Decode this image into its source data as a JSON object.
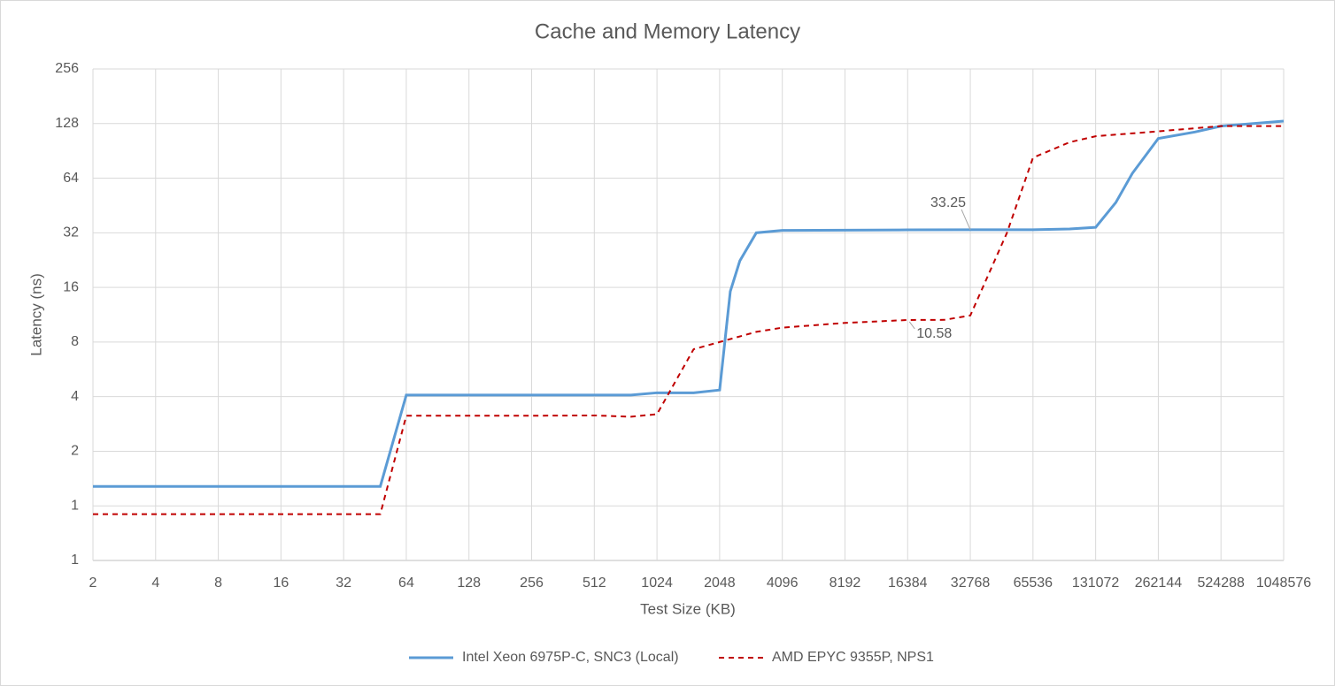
{
  "chart_data": {
    "type": "line",
    "title": "Cache and Memory Latency",
    "x_label": "Test Size (KB)",
    "y_label": "Latency (ns)",
    "xlog": true,
    "ylog": true,
    "log_base": 2,
    "grid": true,
    "legend": "bottom",
    "xlim": [
      2,
      1048576
    ],
    "xticks": [
      2,
      4,
      8,
      16,
      32,
      64,
      128,
      256,
      512,
      1024,
      2048,
      4096,
      8192,
      16384,
      32768,
      65536,
      131072,
      262144,
      524288,
      1048576
    ],
    "ylim": [
      0.5,
      256
    ],
    "yticks": [
      {
        "value": 0.5,
        "label": "1"
      },
      1,
      2,
      4,
      8,
      16,
      32,
      64,
      128,
      256
    ],
    "series": [
      {
        "name": "Intel Xeon 6975P-C, SNC3 (Local)",
        "color": "#5b9bd5",
        "line_style": "solid",
        "x": [
          2,
          4,
          8,
          16,
          32,
          48,
          64,
          96,
          128,
          256,
          512,
          768,
          1024,
          1536,
          2048,
          2304,
          2560,
          3072,
          4096,
          8192,
          16384,
          32768,
          65536,
          98304,
          131072,
          163840,
          196608,
          262144,
          393216,
          524288,
          1048576
        ],
        "values": [
          1.28,
          1.28,
          1.28,
          1.28,
          1.28,
          1.28,
          4.08,
          4.08,
          4.08,
          4.08,
          4.08,
          4.08,
          4.2,
          4.2,
          4.35,
          15.2,
          22.4,
          32,
          33,
          33.1,
          33.2,
          33.25,
          33.25,
          33.6,
          34.3,
          47,
          68,
          106,
          115,
          124,
          132
        ]
      },
      {
        "name": "AMD EPYC 9355P, NPS1",
        "color": "#c00000",
        "line_style": "dashed",
        "x": [
          2,
          4,
          8,
          16,
          32,
          48,
          64,
          96,
          128,
          256,
          512,
          768,
          1024,
          1536,
          2048,
          3072,
          4096,
          8192,
          16384,
          24576,
          32768,
          49152,
          65536,
          98304,
          131072,
          262144,
          524288,
          1048576
        ],
        "values": [
          0.9,
          0.9,
          0.9,
          0.9,
          0.9,
          0.9,
          3.14,
          3.14,
          3.14,
          3.14,
          3.15,
          3.1,
          3.2,
          7.3,
          8.0,
          9.1,
          9.6,
          10.2,
          10.58,
          10.6,
          11.2,
          32,
          83,
          101,
          109,
          116,
          124,
          124
        ]
      }
    ],
    "data_labels": [
      {
        "series": 0,
        "index": 21
      },
      {
        "series": 1,
        "index": 18
      }
    ]
  }
}
